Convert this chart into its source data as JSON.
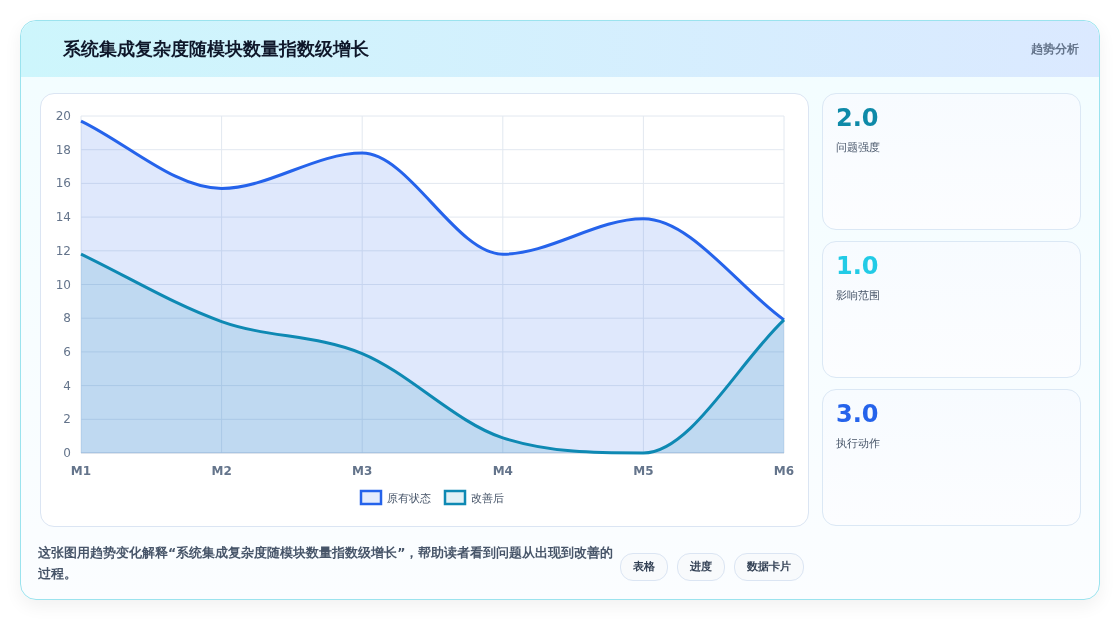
{
  "chart_data": [
    {
      "type": "area",
      "title": "系统集成复杂度随模块数量指数级增长",
      "categories": [
        "M1",
        "M2",
        "M3",
        "M4",
        "M5",
        "M6"
      ],
      "series": [
        {
          "name": "原有状态",
          "color": "#2563eb",
          "values": [
            19.7,
            15.7,
            17.8,
            11.8,
            13.9,
            7.9
          ]
        },
        {
          "name": "改善后",
          "color": "#0e89b3",
          "values": [
            11.8,
            7.8,
            5.9,
            0.9,
            0,
            7.9
          ]
        }
      ],
      "ylim": [
        0,
        20
      ],
      "yticks": [
        0,
        2,
        4,
        6,
        8,
        10,
        12,
        14,
        16,
        18,
        20
      ],
      "grid": true,
      "legend": "bottom",
      "annotations": [
        "趋势分析",
        "这张图用趋势变化解释“系统集成复杂度随模块数量指数级增长”，帮助读者看到问题从出现到改善的过程。",
        "表格",
        "进度",
        "数据卡片"
      ]
    },
    {
      "type": "other",
      "annotations": [
        "2.0",
        "问题强度",
        "1.0",
        "影响范围",
        "3.0",
        "执行动作"
      ]
    }
  ]
}
